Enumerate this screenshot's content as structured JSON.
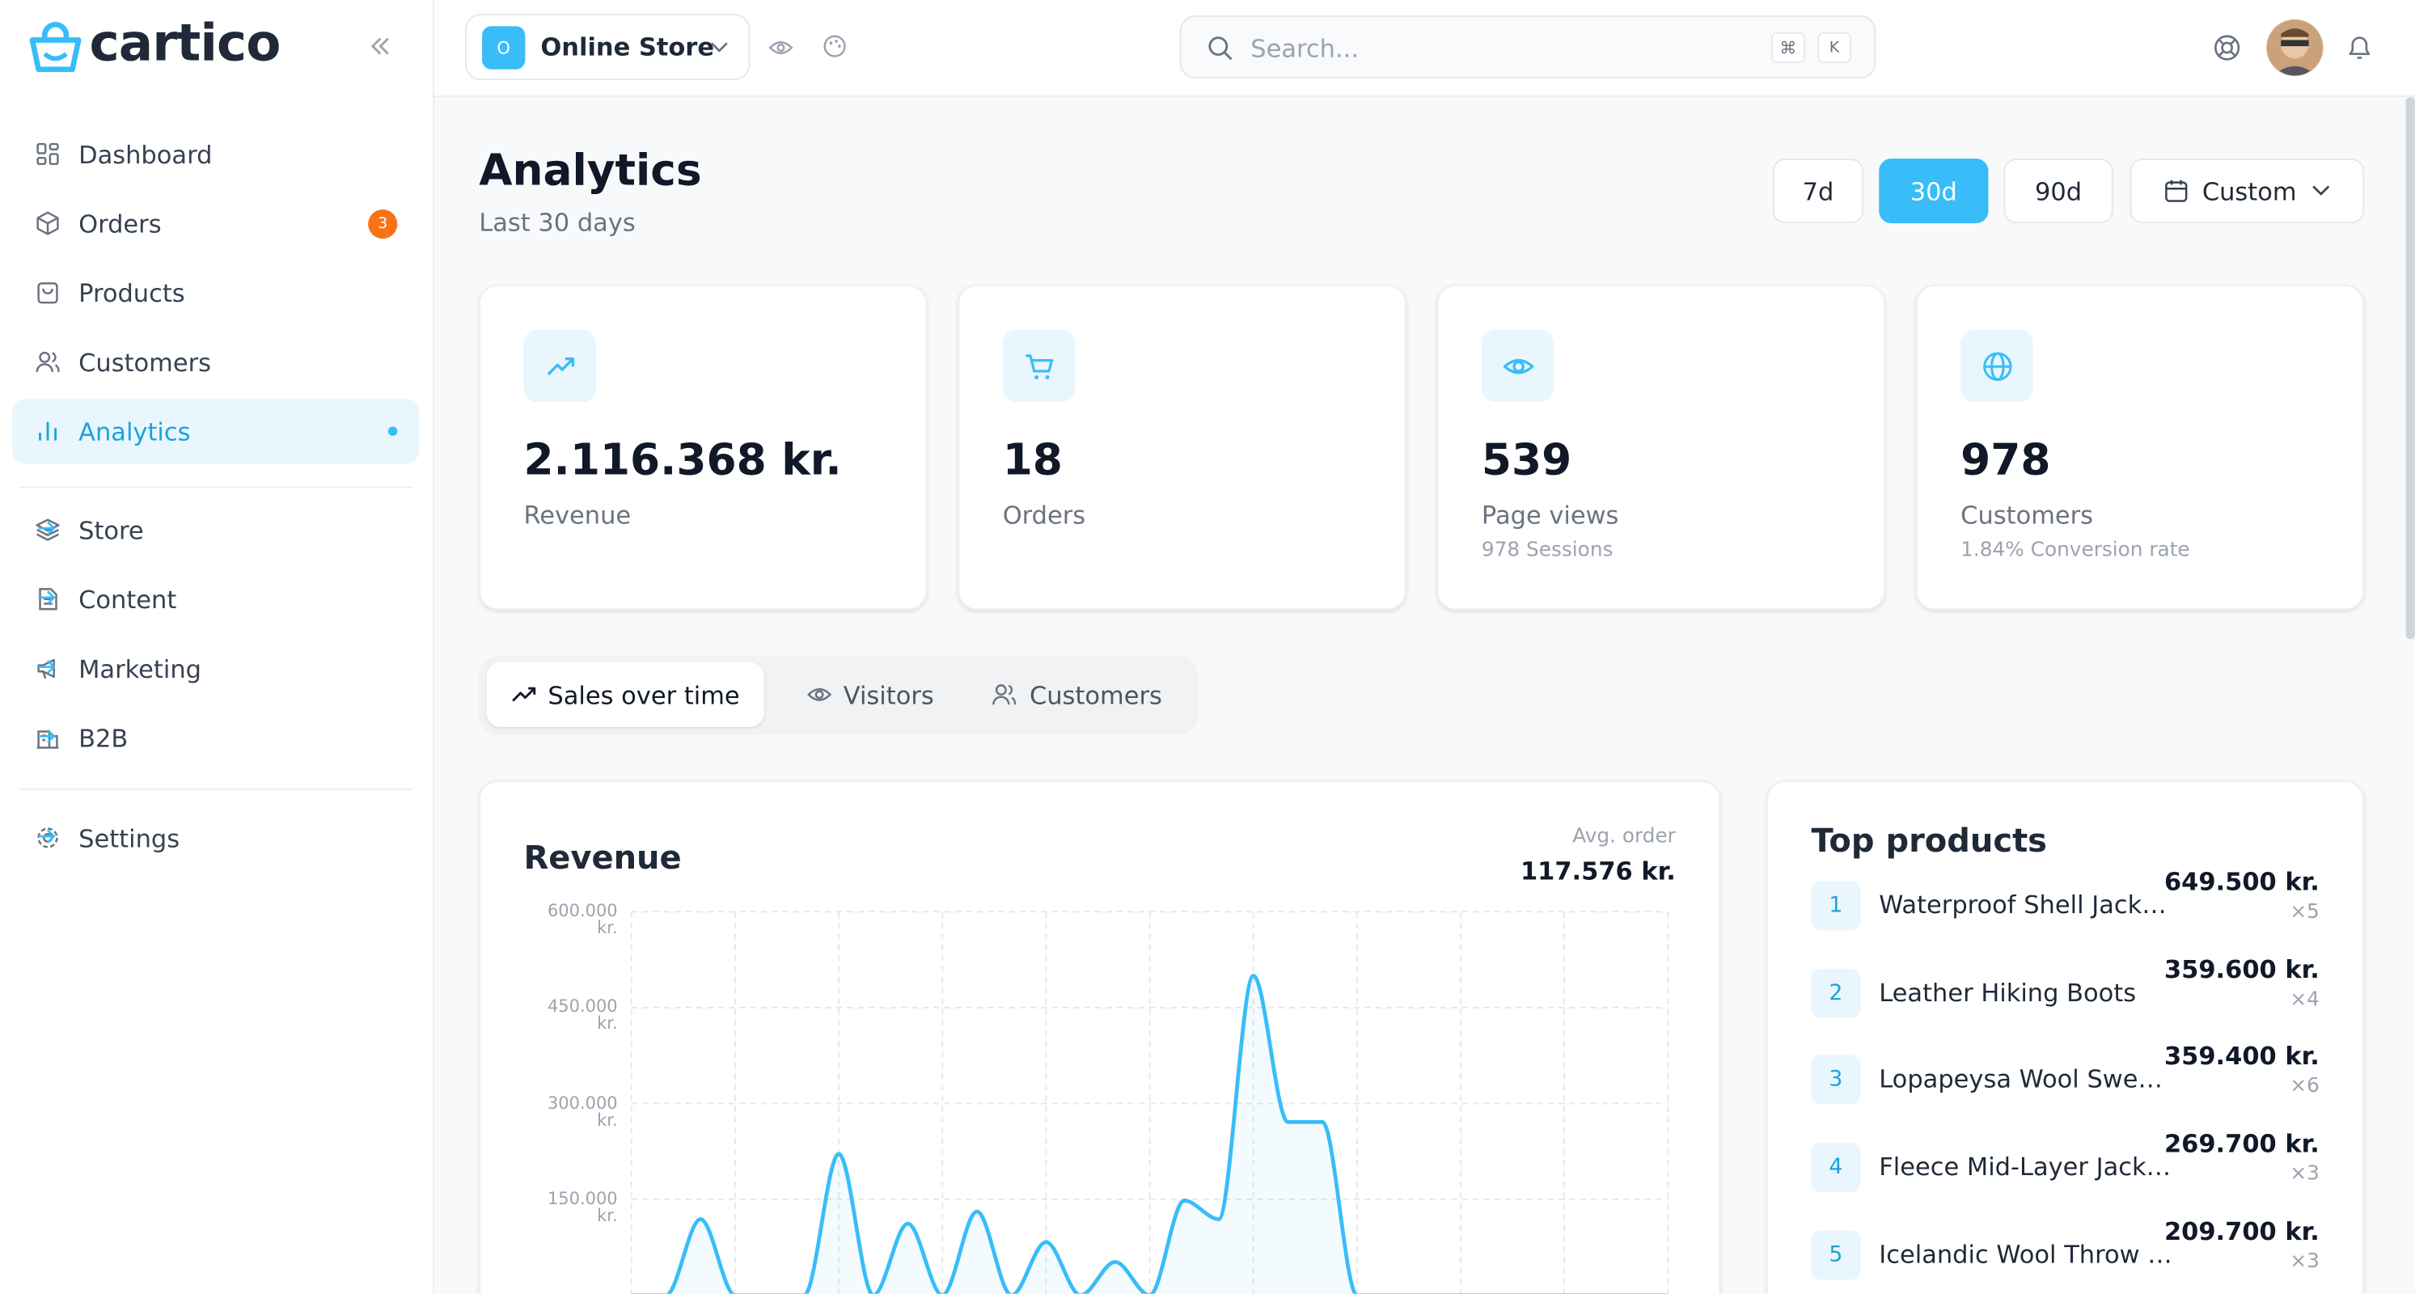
{
  "brand": "cartico",
  "store": {
    "avatar": "O",
    "name": "Online Store"
  },
  "search": {
    "placeholder": "Search...",
    "keys": [
      "⌘",
      "K"
    ]
  },
  "sidebar": {
    "main": [
      {
        "label": "Dashboard"
      },
      {
        "label": "Orders",
        "badge": 3
      },
      {
        "label": "Products"
      },
      {
        "label": "Customers"
      },
      {
        "label": "Analytics"
      }
    ],
    "active": 4,
    "sections": [
      {
        "label": "Store"
      },
      {
        "label": "Content"
      },
      {
        "label": "Marketing"
      },
      {
        "label": "B2B"
      }
    ],
    "settings": "Settings"
  },
  "page": {
    "title": "Analytics",
    "subtitle": "Last 30 days",
    "ranges": [
      "7d",
      "30d",
      "90d"
    ],
    "active_range": 1,
    "custom": "Custom"
  },
  "stats": [
    {
      "value": "2.116.368 kr.",
      "label": "Revenue"
    },
    {
      "value": 18,
      "label": "Orders"
    },
    {
      "value": 539,
      "label": "Page views",
      "note": "978 Sessions"
    },
    {
      "value": 978,
      "label": "Customers",
      "note": "1.84% Conversion rate"
    }
  ],
  "tabs": [
    "Sales over time",
    "Visitors",
    "Customers"
  ],
  "active_tab": 0,
  "revenue_card": {
    "avg_label": "Avg. order",
    "avg_value": "117.576 kr."
  },
  "chart_data": {
    "type": "line",
    "title": "Revenue",
    "categories": [
      null,
      null,
      null,
      null,
      null,
      null,
      null,
      null,
      null,
      null,
      null,
      null,
      null,
      null,
      null,
      null,
      null,
      null,
      null,
      null,
      null,
      null,
      null,
      null,
      null,
      null,
      null,
      null,
      null,
      null,
      null
    ],
    "values": [
      0,
      0,
      119000,
      0,
      0,
      0,
      221000,
      0,
      112000,
      0,
      131000,
      0,
      83000,
      0,
      52000,
      0,
      148000,
      119000,
      500000,
      271000,
      271000,
      0,
      0,
      0,
      0,
      0,
      0,
      0,
      0,
      0,
      0
    ],
    "color": "#38bdf8",
    "ylim": [
      0,
      600000
    ],
    "yticks": [
      {
        "value": 150000,
        "label": "150.000 kr."
      },
      {
        "value": 300000,
        "label": "300.000 kr."
      },
      {
        "value": 450000,
        "label": "450.000 kr."
      },
      {
        "value": 600000,
        "label": "600.000 kr."
      }
    ],
    "grid": true
  },
  "top_products": {
    "title": "Top products",
    "items": [
      {
        "rank": 1,
        "name": "Waterproof Shell Jack…",
        "amount": "649.500 kr.",
        "qty": "×5"
      },
      {
        "rank": 2,
        "name": "Leather Hiking Boots",
        "amount": "359.600 kr.",
        "qty": "×4"
      },
      {
        "rank": 3,
        "name": "Lopapeysa Wool Swe…",
        "amount": "359.400 kr.",
        "qty": "×6"
      },
      {
        "rank": 4,
        "name": "Fleece Mid-Layer Jack…",
        "amount": "269.700 kr.",
        "qty": "×3"
      },
      {
        "rank": 5,
        "name": "Icelandic Wool Throw …",
        "amount": "209.700 kr.",
        "qty": "×3"
      }
    ]
  }
}
